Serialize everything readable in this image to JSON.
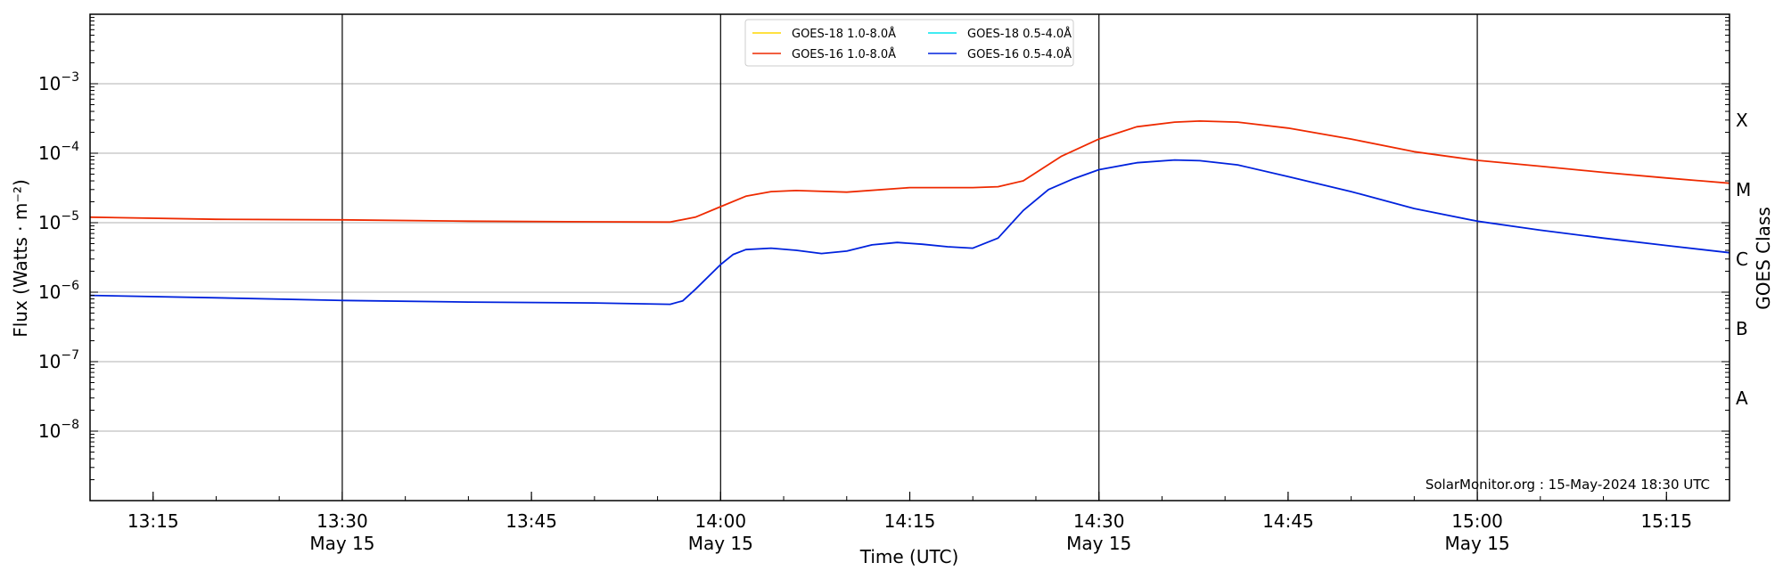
{
  "chart_data": {
    "type": "line",
    "xlabel": "Time (UTC)",
    "ylabel": "Flux (Watts · m⁻²)",
    "ylabel_right": "GOES Class",
    "credit": "SolarMonitor.org : 15-May-2024 18:30 UTC",
    "y_scale": "log",
    "ylim": [
      1e-09,
      0.01
    ],
    "xlim": [
      "13:10",
      "15:20"
    ],
    "grid": "horizontal at decades, vertical lines at 30-minute marks",
    "legend_position": "top-center",
    "x_ticks": [
      {
        "label": "13:15",
        "date": ""
      },
      {
        "label": "13:30",
        "date": "May 15"
      },
      {
        "label": "13:45",
        "date": ""
      },
      {
        "label": "14:00",
        "date": "May 15"
      },
      {
        "label": "14:15",
        "date": ""
      },
      {
        "label": "14:30",
        "date": "May 15"
      },
      {
        "label": "14:45",
        "date": ""
      },
      {
        "label": "15:00",
        "date": "May 15"
      },
      {
        "label": "15:15",
        "date": ""
      }
    ],
    "vertical_lines": [
      "13:30",
      "14:00",
      "14:30",
      "15:00"
    ],
    "y_ticks": [
      {
        "base": "10",
        "exp": "−3",
        "value": 0.001
      },
      {
        "base": "10",
        "exp": "−4",
        "value": 0.0001
      },
      {
        "base": "10",
        "exp": "−5",
        "value": 1e-05
      },
      {
        "base": "10",
        "exp": "−6",
        "value": 1e-06
      },
      {
        "base": "10",
        "exp": "−7",
        "value": 1e-07
      },
      {
        "base": "10",
        "exp": "−8",
        "value": 1e-08
      }
    ],
    "goes_classes": [
      {
        "label": "A",
        "value": 3e-08
      },
      {
        "label": "B",
        "value": 3e-07
      },
      {
        "label": "C",
        "value": 3e-06
      },
      {
        "label": "M",
        "value": 3e-05
      },
      {
        "label": "X",
        "value": 0.0003
      }
    ],
    "legend": [
      {
        "name": "GOES-18 1.0-8.0Å",
        "color": "#ffd700"
      },
      {
        "name": "GOES-18 0.5-4.0Å",
        "color": "#00e5ee"
      },
      {
        "name": "GOES-16 1.0-8.0Å",
        "color": "#ee2a00"
      },
      {
        "name": "GOES-16 0.5-4.0Å",
        "color": "#0022dd"
      }
    ],
    "series": [
      {
        "name": "GOES-16 1.0-8.0Å",
        "color": "#ee2a00",
        "x": [
          "13:10",
          "13:20",
          "13:30",
          "13:40",
          "13:50",
          "13:56",
          "13:58",
          "14:00",
          "14:02",
          "14:04",
          "14:06",
          "14:10",
          "14:15",
          "14:20",
          "14:22",
          "14:24",
          "14:27",
          "14:30",
          "14:33",
          "14:36",
          "14:38",
          "14:41",
          "14:45",
          "14:50",
          "14:55",
          "15:00",
          "15:05",
          "15:10",
          "15:15",
          "15:20"
        ],
        "y": [
          1.2e-05,
          1.12e-05,
          1.1e-05,
          1.05e-05,
          1.03e-05,
          1.02e-05,
          1.2e-05,
          1.7e-05,
          2.4e-05,
          2.8e-05,
          2.9e-05,
          2.75e-05,
          3.2e-05,
          3.2e-05,
          3.3e-05,
          4e-05,
          9e-05,
          0.00016,
          0.00024,
          0.00028,
          0.00029,
          0.00028,
          0.00023,
          0.00016,
          0.000105,
          7.9e-05,
          6.5e-05,
          5.3e-05,
          4.4e-05,
          3.7e-05
        ]
      },
      {
        "name": "GOES-16 0.5-4.0Å",
        "color": "#0022dd",
        "x": [
          "13:10",
          "13:20",
          "13:30",
          "13:40",
          "13:50",
          "13:56",
          "13:57",
          "13:58",
          "14:00",
          "14:01",
          "14:02",
          "14:04",
          "14:06",
          "14:08",
          "14:10",
          "14:12",
          "14:14",
          "14:16",
          "14:18",
          "14:20",
          "14:22",
          "14:24",
          "14:26",
          "14:28",
          "14:30",
          "14:33",
          "14:36",
          "14:38",
          "14:41",
          "14:45",
          "14:50",
          "14:55",
          "15:00",
          "15:05",
          "15:10",
          "15:15",
          "15:20"
        ],
        "y": [
          9e-07,
          8.3e-07,
          7.6e-07,
          7.2e-07,
          7e-07,
          6.7e-07,
          7.5e-07,
          1.1e-06,
          2.5e-06,
          3.5e-06,
          4.1e-06,
          4.3e-06,
          4e-06,
          3.6e-06,
          3.9e-06,
          4.8e-06,
          5.2e-06,
          4.9e-06,
          4.5e-06,
          4.3e-06,
          6e-06,
          1.5e-05,
          3e-05,
          4.3e-05,
          5.8e-05,
          7.3e-05,
          8e-05,
          7.8e-05,
          6.8e-05,
          4.6e-05,
          2.8e-05,
          1.6e-05,
          1.05e-05,
          7.8e-06,
          6e-06,
          4.7e-06,
          3.7e-06
        ]
      }
    ]
  }
}
